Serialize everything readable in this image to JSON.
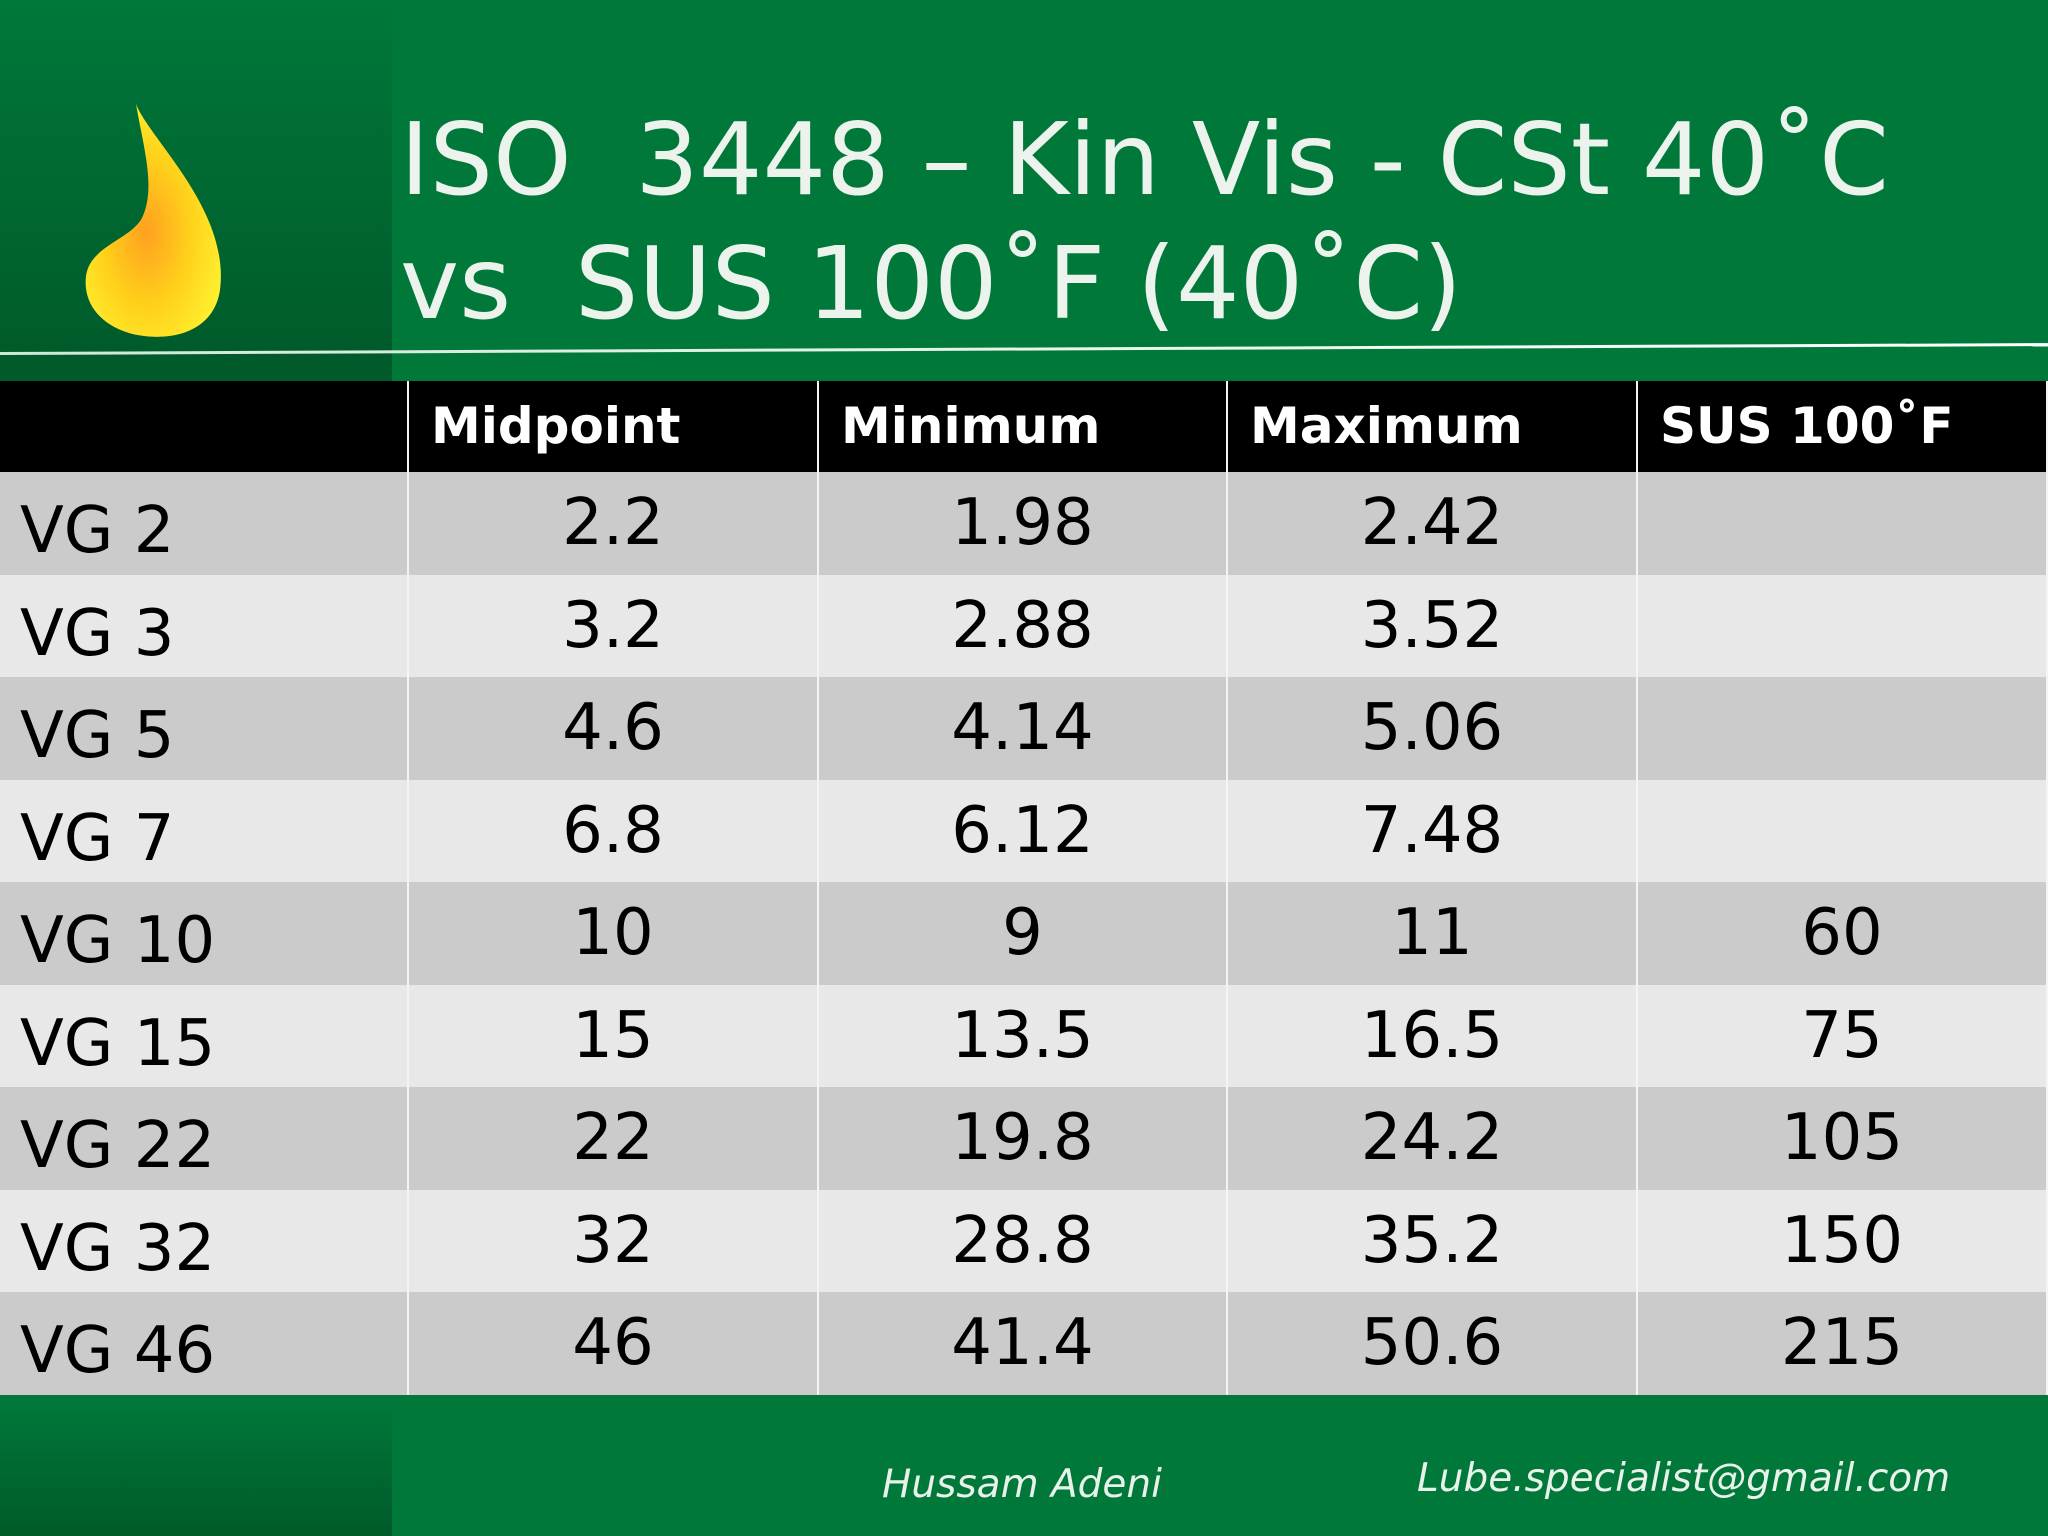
{
  "title": [
    "ISO  3448 – Kin Vis - CSt 40˚C",
    "vs  SUS 100˚F (40˚C)"
  ],
  "table": {
    "header": [
      null,
      "Midpoint",
      "Minimum",
      "Maximum",
      "SUS 100˚F"
    ],
    "rows": [
      [
        "VG 2",
        "2.2",
        "1.98",
        "2.42",
        null
      ],
      [
        "VG 3",
        "3.2",
        "2.88",
        "3.52",
        null
      ],
      [
        "VG 5",
        "4.6",
        "4.14",
        "5.06",
        null
      ],
      [
        "VG 7",
        "6.8",
        "6.12",
        "7.48",
        null
      ],
      [
        "VG 10",
        "10",
        "9",
        "11",
        "60"
      ],
      [
        "VG 15",
        "15",
        "13.5",
        "16.5",
        "75"
      ],
      [
        "VG 22",
        "22",
        "19.8",
        "24.2",
        "105"
      ],
      [
        "VG 32",
        "32",
        "28.8",
        "35.2",
        "150"
      ],
      [
        "VG 46",
        "46",
        "41.4",
        "50.6",
        "215"
      ]
    ]
  },
  "footer": {
    "author": "Hussam Adeni",
    "email": "Lube.specialist@gmail.com"
  }
}
